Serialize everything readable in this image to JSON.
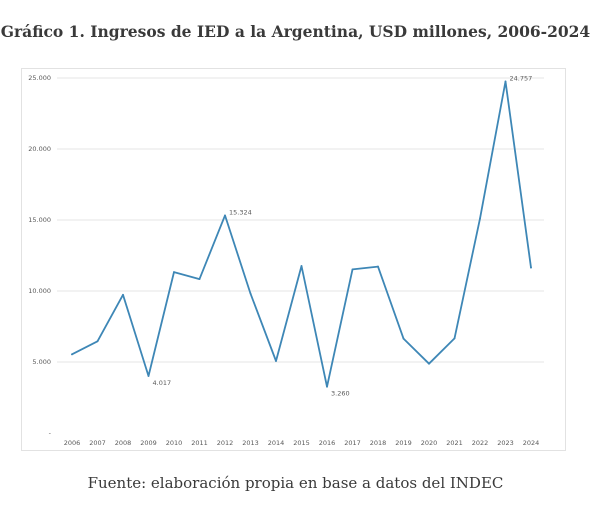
{
  "title": "Gráfico 1. Ingresos de IED a la Argentina, USD millones, 2006-2024",
  "source": "Fuente: elaboración propia en base a datos del INDEC",
  "chart_data": {
    "type": "line",
    "title": "Gráfico 1. Ingresos de IED a la Argentina, USD millones, 2006-2024",
    "xlabel": "",
    "ylabel": "",
    "categories": [
      "2006",
      "2007",
      "2008",
      "2009",
      "2010",
      "2011",
      "2012",
      "2013",
      "2014",
      "2015",
      "2016",
      "2017",
      "2018",
      "2019",
      "2020",
      "2021",
      "2022",
      "2023",
      "2024"
    ],
    "series": [
      {
        "values": [
          5540,
          6460,
          9730,
          4017,
          11330,
          10840,
          15324,
          9820,
          5070,
          11760,
          3260,
          11520,
          11720,
          6650,
          4880,
          6660,
          15100,
          24757,
          11650
        ]
      }
    ],
    "ylim": [
      0,
      25000
    ],
    "yticks": [
      {
        "value": 0,
        "label": "-"
      },
      {
        "value": 5000,
        "label": "5.000"
      },
      {
        "value": 10000,
        "label": "10.000"
      },
      {
        "value": 15000,
        "label": "15.000"
      },
      {
        "value": 20000,
        "label": "20.000"
      },
      {
        "value": 25000,
        "label": "25.000"
      }
    ],
    "data_labels": [
      {
        "index": 3,
        "text": "4.017"
      },
      {
        "index": 6,
        "text": "15.324"
      },
      {
        "index": 10,
        "text": "3.260"
      },
      {
        "index": 17,
        "text": "24.757"
      }
    ],
    "grid": true,
    "line_color": "#3e87b6",
    "grid_color": "#e6e6e6"
  }
}
